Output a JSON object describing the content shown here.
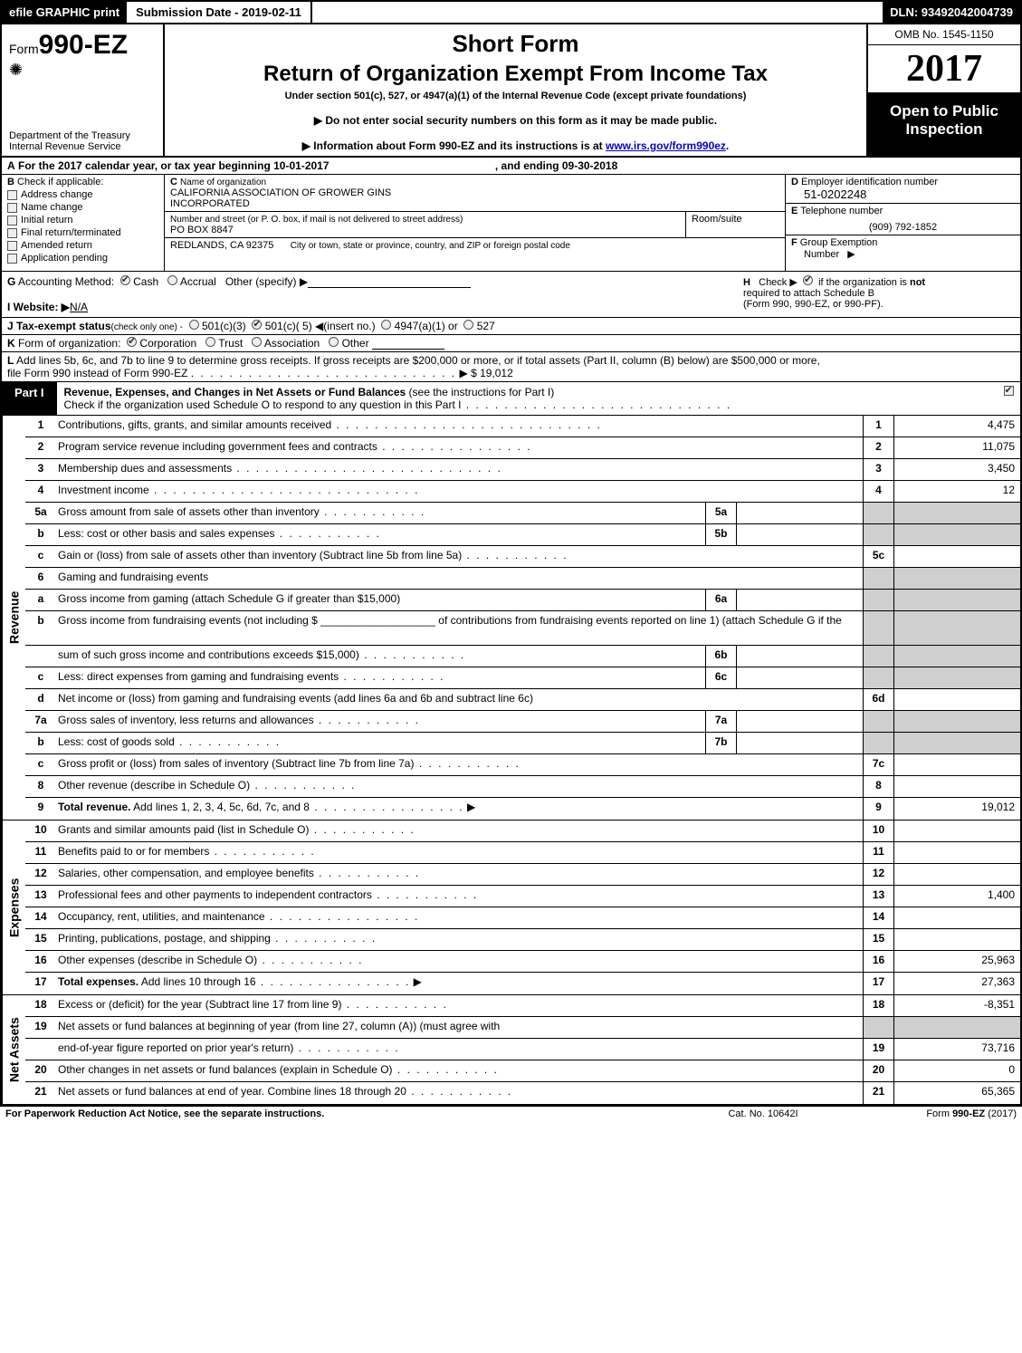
{
  "colors": {
    "black": "#000000",
    "white": "#ffffff",
    "shade": "#cfcfcf",
    "link": "#0000cc",
    "chk_border": "#555555",
    "chk_fill": "#eeeeee"
  },
  "topstrip": {
    "efile": "efile GRAPHIC print",
    "submission_label": "Submission Date - 2019-02-11",
    "dln": "DLN: 93492042004739"
  },
  "header": {
    "form_prefix": "Form",
    "form_number": "990-EZ",
    "dept1": "Department of the Treasury",
    "dept2": "Internal Revenue Service",
    "title1": "Short Form",
    "title2": "Return of Organization Exempt From Income Tax",
    "subtitle": "Under section 501(c), 527, or 4947(a)(1) of the Internal Revenue Code (except private foundations)",
    "note1": "▶ Do not enter social security numbers on this form as it may be made public.",
    "note2_pre": "▶ Information about Form 990-EZ and its instructions is at ",
    "note2_link": "www.irs.gov/form990ez",
    "note2_post": ".",
    "omb": "OMB No. 1545-1150",
    "year": "2017",
    "open1": "Open to Public",
    "open2": "Inspection"
  },
  "rowA": {
    "lead": "A",
    "text_pre": "For the 2017 calendar year, or tax year beginning 10-01-2017",
    "text_mid": ", and ending 09-30-2018"
  },
  "B": {
    "lead": "B",
    "label": "Check if applicable:",
    "items": [
      "Address change",
      "Name change",
      "Initial return",
      "Final return/terminated",
      "Amended return",
      "Application pending"
    ]
  },
  "C": {
    "lead": "C",
    "label": "Name of organization",
    "name1": "CALIFORNIA ASSOCIATION OF GROWER GINS",
    "name2": "INCORPORATED",
    "street_label": "Number and street (or P. O. box, if mail is not delivered to street address)",
    "room_label": "Room/suite",
    "street": "PO BOX 8847",
    "city_label": "City or town, state or province, country, and ZIP or foreign postal code",
    "city": "REDLANDS, CA  92375"
  },
  "D": {
    "lead": "D",
    "label": "Employer identification number",
    "value": "51-0202248"
  },
  "E": {
    "lead": "E",
    "label": "Telephone number",
    "value": "(909) 792-1852"
  },
  "F": {
    "lead": "F",
    "label": "Group Exemption",
    "label2": "Number",
    "arrow": "▶"
  },
  "G": {
    "lead": "G",
    "label": "Accounting Method:",
    "cash": "Cash",
    "accrual": "Accrual",
    "other": "Other (specify) ▶"
  },
  "H": {
    "lead": "H",
    "text1": "Check ▶",
    "text2": "if the organization is",
    "not_bold": "not",
    "text3": "required to attach Schedule B",
    "text4": "(Form 990, 990-EZ, or 990-PF)."
  },
  "I": {
    "lead": "I Website: ▶",
    "value": "N/A"
  },
  "J": {
    "lead": "J Tax-exempt status",
    "small": "(check only one) -",
    "o1": "501(c)(3)",
    "o2": "501(c)( 5) ◀(insert no.)",
    "o3": "4947(a)(1) or",
    "o4": "527"
  },
  "K": {
    "lead": "K",
    "label": "Form of organization:",
    "o1": "Corporation",
    "o2": "Trust",
    "o3": "Association",
    "o4": "Other"
  },
  "L": {
    "lead": "L",
    "text": "Add lines 5b, 6c, and 7b to line 9 to determine gross receipts. If gross receipts are $200,000 or more, or if total assets (Part II, column (B) below) are $500,000 or more,",
    "text2": "file Form 990 instead of Form 990-EZ",
    "arrow": "▶",
    "amount": "$ 19,012"
  },
  "part1": {
    "tag": "Part I",
    "title_bold": "Revenue, Expenses, and Changes in Net Assets or Fund Balances",
    "title_rest": " (see the instructions for Part I)",
    "check_line": "Check if the organization used Schedule O to respond to any question in this Part I"
  },
  "sections": [
    {
      "side": "Revenue",
      "rows": [
        {
          "n": "1",
          "d": "Contributions, gifts, grants, and similar amounts received",
          "bn": "1",
          "bv": "4,475",
          "dots": "long"
        },
        {
          "n": "2",
          "d": "Program service revenue including government fees and contracts",
          "bn": "2",
          "bv": "11,075",
          "dots": "med"
        },
        {
          "n": "3",
          "d": "Membership dues and assessments",
          "bn": "3",
          "bv": "3,450",
          "dots": "long"
        },
        {
          "n": "4",
          "d": "Investment income",
          "bn": "4",
          "bv": "12",
          "dots": "long"
        },
        {
          "n": "5a",
          "d": "Gross amount from sale of assets other than inventory",
          "ibn": "5a",
          "shadeRight": true,
          "dots": "short"
        },
        {
          "n": "b",
          "d": "Less: cost or other basis and sales expenses",
          "ibn": "5b",
          "shadeRight": true,
          "dots": "short"
        },
        {
          "n": "c",
          "d": "Gain or (loss) from sale of assets other than inventory (Subtract line 5b from line 5a)",
          "bn": "5c",
          "bv": "",
          "dots": "short"
        },
        {
          "n": "6",
          "d": "Gaming and fundraising events",
          "shadeRight": true,
          "noBox": true
        },
        {
          "n": "a",
          "d": "Gross income from gaming (attach Schedule G if greater than $15,000)",
          "ibn": "6a",
          "shadeRight": true
        },
        {
          "n": "b",
          "d_html": "Gross income from fundraising events (not including $ ___________________ of contributions from fundraising events reported on line 1) (attach Schedule G if the",
          "shadeRight": true,
          "noBox": true,
          "tall": true
        },
        {
          "n": "",
          "d": "sum of such gross income and contributions exceeds $15,000)",
          "ibn": "6b",
          "shadeRight": true,
          "dots": "tiny"
        },
        {
          "n": "c",
          "d": "Less: direct expenses from gaming and fundraising events",
          "ibn": "6c",
          "shadeRight": true,
          "dots": "tiny"
        },
        {
          "n": "d",
          "d": "Net income or (loss) from gaming and fundraising events (add lines 6a and 6b and subtract line 6c)",
          "bn": "6d",
          "bv": ""
        },
        {
          "n": "7a",
          "d": "Gross sales of inventory, less returns and allowances",
          "ibn": "7a",
          "shadeRight": true,
          "dots": "short"
        },
        {
          "n": "b",
          "d": "Less: cost of goods sold",
          "ibn": "7b",
          "shadeRight": true,
          "dots": "short"
        },
        {
          "n": "c",
          "d": "Gross profit or (loss) from sales of inventory (Subtract line 7b from line 7a)",
          "bn": "7c",
          "bv": "",
          "dots": "short"
        },
        {
          "n": "8",
          "d": "Other revenue (describe in Schedule O)",
          "bn": "8",
          "bv": "",
          "dots": "short"
        },
        {
          "n": "9",
          "d_bold": "Total revenue.",
          "d": " Add lines 1, 2, 3, 4, 5c, 6d, 7c, and 8",
          "bn": "9",
          "bv": "19,012",
          "arrow": true,
          "dots": "med"
        }
      ]
    },
    {
      "side": "Expenses",
      "rows": [
        {
          "n": "10",
          "d": "Grants and similar amounts paid (list in Schedule O)",
          "bn": "10",
          "bv": "",
          "dots": "short"
        },
        {
          "n": "11",
          "d": "Benefits paid to or for members",
          "bn": "11",
          "bv": "",
          "dots": "short"
        },
        {
          "n": "12",
          "d": "Salaries, other compensation, and employee benefits",
          "bn": "12",
          "bv": "",
          "dots": "short"
        },
        {
          "n": "13",
          "d": "Professional fees and other payments to independent contractors",
          "bn": "13",
          "bv": "1,400",
          "dots": "short"
        },
        {
          "n": "14",
          "d": "Occupancy, rent, utilities, and maintenance",
          "bn": "14",
          "bv": "",
          "dots": "med"
        },
        {
          "n": "15",
          "d": "Printing, publications, postage, and shipping",
          "bn": "15",
          "bv": "",
          "dots": "short"
        },
        {
          "n": "16",
          "d": "Other expenses (describe in Schedule O)",
          "bn": "16",
          "bv": "25,963",
          "dots": "short"
        },
        {
          "n": "17",
          "d_bold": "Total expenses.",
          "d": " Add lines 10 through 16",
          "bn": "17",
          "bv": "27,363",
          "arrow": true,
          "dots": "med"
        }
      ]
    },
    {
      "side": "Net Assets",
      "rows": [
        {
          "n": "18",
          "d": "Excess or (deficit) for the year (Subtract line 17 from line 9)",
          "bn": "18",
          "bv": "-8,351",
          "dots": "short"
        },
        {
          "n": "19",
          "d": "Net assets or fund balances at beginning of year (from line 27, column (A)) (must agree with",
          "shadeRight": true,
          "noBox": true
        },
        {
          "n": "",
          "d": "end-of-year figure reported on prior year's return)",
          "bn": "19",
          "bv": "73,716",
          "dots": "short"
        },
        {
          "n": "20",
          "d": "Other changes in net assets or fund balances (explain in Schedule O)",
          "bn": "20",
          "bv": "0",
          "dots": "short"
        },
        {
          "n": "21",
          "d": "Net assets or fund balances at end of year. Combine lines 18 through 20",
          "bn": "21",
          "bv": "65,365",
          "dots": "short"
        }
      ]
    }
  ],
  "footer": {
    "left": "For Paperwork Reduction Act Notice, see the separate instructions.",
    "mid": "Cat. No. 10642I",
    "right_pre": "Form ",
    "right_bold": "990-EZ",
    "right_post": " (2017)"
  }
}
